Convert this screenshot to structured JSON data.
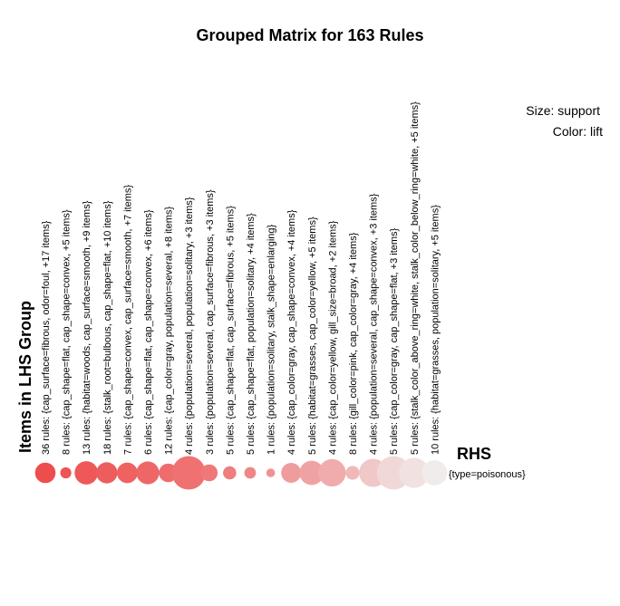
{
  "chart_data": {
    "type": "scatter",
    "title": "Grouped Matrix for 163 Rules",
    "size_legend": "Size: support",
    "color_legend": "Color: lift",
    "xlabel": "Items in LHS Group",
    "ylabel": "RHS",
    "rhs_items": [
      "{type=poisonous}"
    ],
    "groups": [
      {
        "label": "36 rules: {cap_surface=fibrous, odor=foul, +17 items}",
        "support": 0.3,
        "lift": 1.0
      },
      {
        "label": "8 rules: {cap_shape=flat, cap_shape=convex, +5 items}",
        "support": 0.05,
        "lift": 0.96
      },
      {
        "label": "13 rules: {habitat=woods, cap_surface=smooth, +9 items}",
        "support": 0.42,
        "lift": 0.93
      },
      {
        "label": "18 rules: {stalk_root=bulbous, cap_shape=flat, +10 items}",
        "support": 0.33,
        "lift": 0.9
      },
      {
        "label": "7 rules: {cap_shape=convex, cap_surface=smooth, +7 items}",
        "support": 0.31,
        "lift": 0.87
      },
      {
        "label": "6 rules: {cap_shape=flat, cap_shape=convex, +6 items}",
        "support": 0.4,
        "lift": 0.84
      },
      {
        "label": "12 rules: {cap_color=gray, population=several, +8 items}",
        "support": 0.24,
        "lift": 0.81
      },
      {
        "label": "4 rules: {population=several, population=solitary, +3 items}",
        "support": 1.0,
        "lift": 0.78
      },
      {
        "label": "3 rules: {population=several, cap_surface=fibrous, +3 items}",
        "support": 0.18,
        "lift": 0.74
      },
      {
        "label": "5 rules: {cap_shape=flat, cap_surface=fibrous, +5 items}",
        "support": 0.09,
        "lift": 0.7
      },
      {
        "label": "5 rules: {cap_shape=flat, population=solitary, +4 items}",
        "support": 0.06,
        "lift": 0.65
      },
      {
        "label": "1 rules: {population=solitary, stalk_shape=enlarging}",
        "support": 0.02,
        "lift": 0.58
      },
      {
        "label": "4 rules: {cap_color=gray, cap_shape=convex, +4 items}",
        "support": 0.28,
        "lift": 0.52
      },
      {
        "label": "5 rules: {habitat=grasses, cap_color=yellow, +5 items}",
        "support": 0.46,
        "lift": 0.48
      },
      {
        "label": "4 rules: {cap_color=yellow, gill_size=broad, +2 items}",
        "support": 0.62,
        "lift": 0.42
      },
      {
        "label": "8 rules: {gill_color=pink, cap_color=gray, +4 items}",
        "support": 0.1,
        "lift": 0.35
      },
      {
        "label": "4 rules: {population=several, cap_shape=convex, +3 items}",
        "support": 0.66,
        "lift": 0.25
      },
      {
        "label": "5 rules: {cap_color=gray, cap_shape=flat, +3 items}",
        "support": 1.0,
        "lift": 0.15
      },
      {
        "label": "5 rules: {stalk_color_above_ring=white, stalk_color_below_ring=white, +5 items}",
        "support": 0.78,
        "lift": 0.1
      },
      {
        "label": "10 rules: {habitat=grasses, population=solitary, +5 items}",
        "support": 0.52,
        "lift": 0.03
      }
    ],
    "color_high": "#ee4d4d",
    "color_low": "#f1f1f1",
    "legend_position": "top-right"
  }
}
